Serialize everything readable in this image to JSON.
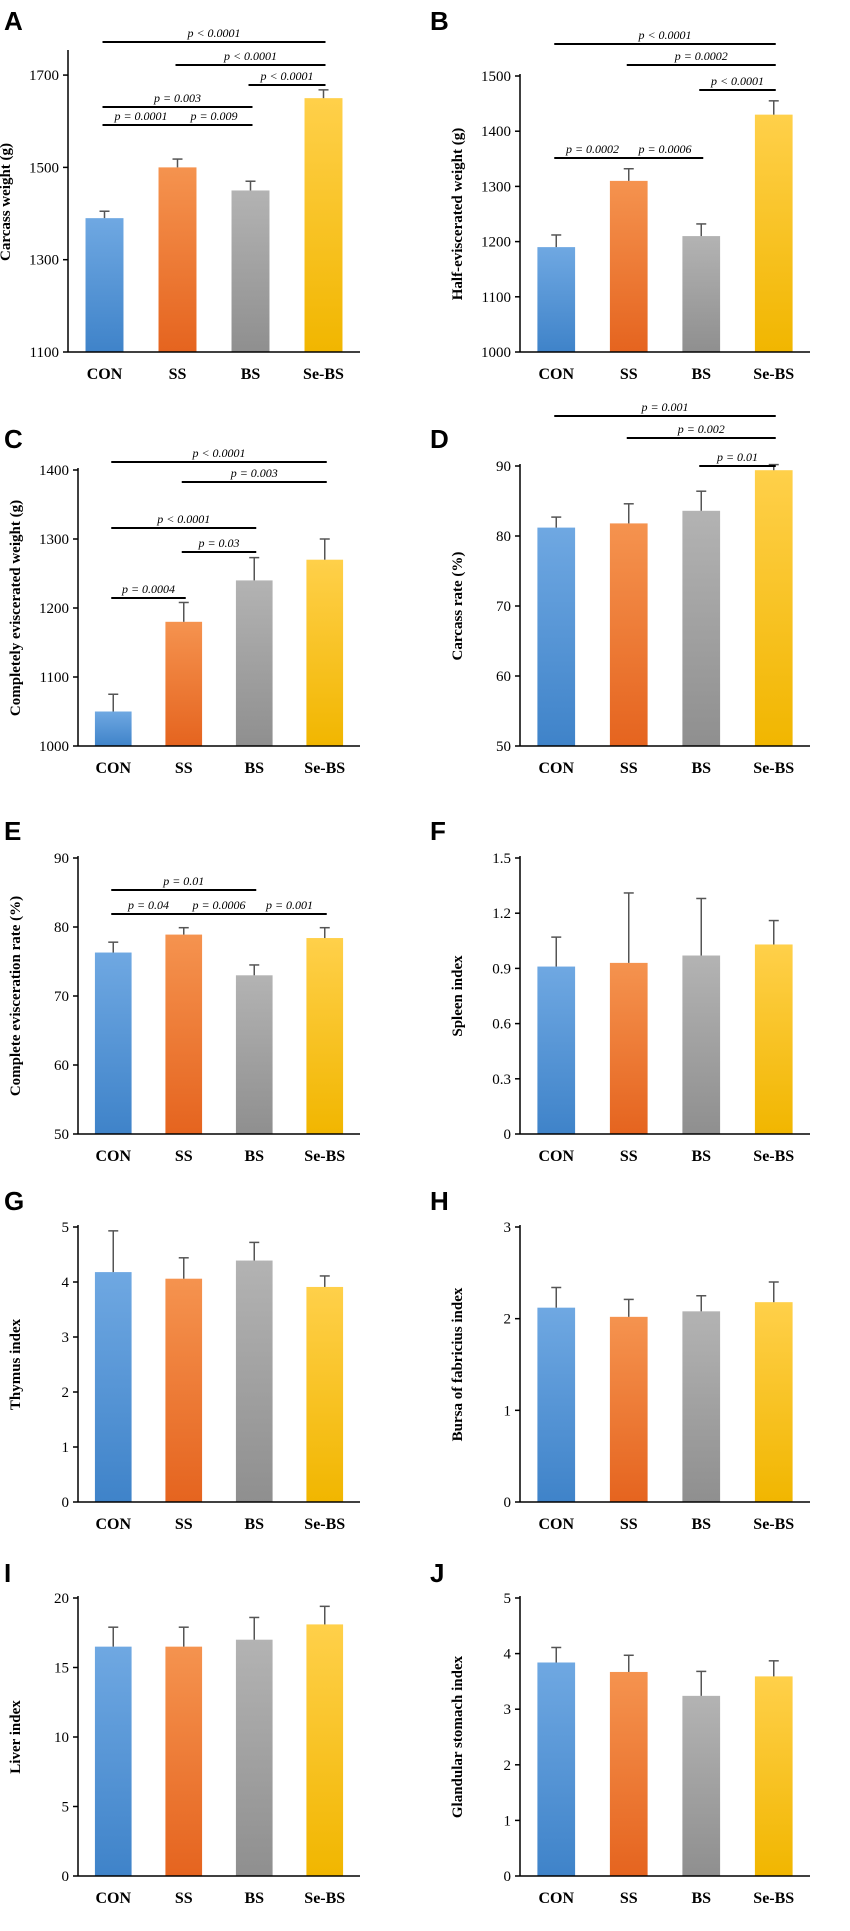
{
  "colors": {
    "CON": [
      "#6fa8e2",
      "#3f83c9"
    ],
    "SS": [
      "#f5934f",
      "#e5641f"
    ],
    "BS": [
      "#b3b3b3",
      "#8f8f8f"
    ],
    "Se-BS": [
      "#ffd04a",
      "#f1b600"
    ]
  },
  "chart_data": [
    {
      "id": "A",
      "type": "bar",
      "ylabel": "Carcass weight (g)",
      "categories": [
        "CON",
        "SS",
        "BS",
        "Se-BS"
      ],
      "values": [
        1390,
        1500,
        1450,
        1650
      ],
      "errors": [
        15,
        18,
        20,
        18
      ],
      "ylim": [
        1100,
        1750
      ],
      "yticks": [
        1100,
        1300,
        1500,
        1700
      ],
      "tick_labels": [
        "1100",
        "1300",
        "1500",
        "1700"
      ],
      "comparisons": [
        {
          "a": 0,
          "b": 3,
          "label": "p < 0.0001",
          "level": 6
        },
        {
          "a": 1,
          "b": 3,
          "label": "p < 0.0001",
          "level": 5
        },
        {
          "a": 2,
          "b": 3,
          "label": "p < 0.0001",
          "level": 4
        },
        {
          "a": 0,
          "b": 2,
          "label": "p = 0.003",
          "level": 3
        },
        {
          "a": 0,
          "b": 1,
          "label": "p = 0.0001",
          "level": 2
        },
        {
          "a": 1,
          "b": 2,
          "label": "p = 0.009",
          "level": 2
        }
      ]
    },
    {
      "id": "B",
      "type": "bar",
      "ylabel": "Half-eviscerated weight (g)",
      "categories": [
        "CON",
        "SS",
        "BS",
        "Se-BS"
      ],
      "values": [
        1190,
        1310,
        1210,
        1430
      ],
      "errors": [
        22,
        22,
        22,
        25
      ],
      "ylim": [
        1000,
        1500
      ],
      "yticks": [
        1000,
        1100,
        1200,
        1300,
        1400,
        1500
      ],
      "tick_labels": [
        "1000",
        "1100",
        "1200",
        "1300",
        "1400",
        "1500"
      ],
      "comparisons": [
        {
          "a": 0,
          "b": 3,
          "label": "p < 0.0001",
          "level": 6
        },
        {
          "a": 1,
          "b": 3,
          "label": "p = 0.0002",
          "level": 5
        },
        {
          "a": 2,
          "b": 3,
          "label": "p < 0.0001",
          "level": 4
        },
        {
          "a": 0,
          "b": 1,
          "label": "p = 0.0002",
          "level": 2
        },
        {
          "a": 1,
          "b": 2,
          "label": "p = 0.0006",
          "level": 2
        }
      ]
    },
    {
      "id": "C",
      "type": "bar",
      "ylabel": "Completely eviscerated weight (g)",
      "categories": [
        "CON",
        "SS",
        "BS",
        "Se-BS"
      ],
      "values": [
        1050,
        1180,
        1240,
        1270
      ],
      "errors": [
        25,
        28,
        33,
        30
      ],
      "ylim": [
        1000,
        1400
      ],
      "yticks": [
        1000,
        1100,
        1200,
        1300,
        1400
      ],
      "tick_labels": [
        "1000",
        "1100",
        "1200",
        "1300",
        "1400"
      ],
      "comparisons": [
        {
          "a": 0,
          "b": 3,
          "label": "p < 0.0001",
          "level": 6
        },
        {
          "a": 1,
          "b": 3,
          "label": "p = 0.003",
          "level": 5
        },
        {
          "a": 0,
          "b": 2,
          "label": "p < 0.0001",
          "level": 4
        },
        {
          "a": 1,
          "b": 2,
          "label": "p = 0.03",
          "level": 3
        },
        {
          "a": 0,
          "b": 1,
          "label": "p = 0.0004",
          "level": 1
        }
      ]
    },
    {
      "id": "D",
      "type": "bar",
      "ylabel": "Carcass rate (%)",
      "categories": [
        "CON",
        "SS",
        "BS",
        "Se-BS"
      ],
      "values": [
        81.2,
        81.8,
        83.6,
        89.4
      ],
      "errors": [
        1.5,
        2.8,
        2.8,
        0.8
      ],
      "ylim": [
        50,
        90
      ],
      "yticks": [
        50,
        60,
        70,
        80,
        90
      ],
      "tick_labels": [
        "50",
        "60",
        "70",
        "80",
        "90"
      ],
      "comparisons": [
        {
          "a": 0,
          "b": 3,
          "label": "p = 0.001",
          "level": 3
        },
        {
          "a": 1,
          "b": 3,
          "label": "p = 0.002",
          "level": 2
        },
        {
          "a": 2,
          "b": 3,
          "label": "p = 0.01",
          "level": 1
        }
      ]
    },
    {
      "id": "E",
      "type": "bar",
      "ylabel": "Complete evisceration rate (%)",
      "categories": [
        "CON",
        "SS",
        "BS",
        "Se-BS"
      ],
      "values": [
        76.3,
        78.9,
        73.0,
        78.4
      ],
      "errors": [
        1.5,
        1.0,
        1.5,
        1.5
      ],
      "ylim": [
        50,
        90
      ],
      "yticks": [
        50,
        60,
        70,
        80,
        90
      ],
      "tick_labels": [
        "50",
        "60",
        "70",
        "80",
        "90"
      ],
      "comparisons": [
        {
          "a": 0,
          "b": 2,
          "label": "p = 0.01",
          "level": 3
        },
        {
          "a": 0,
          "b": 1,
          "label": "p = 0.04",
          "level": 2
        },
        {
          "a": 1,
          "b": 2,
          "label": "p = 0.0006",
          "level": 2
        },
        {
          "a": 2,
          "b": 3,
          "label": "p = 0.001",
          "level": 2
        }
      ]
    },
    {
      "id": "F",
      "type": "bar",
      "ylabel": "Spleen index",
      "categories": [
        "CON",
        "SS",
        "BS",
        "Se-BS"
      ],
      "values": [
        0.91,
        0.93,
        0.97,
        1.03
      ],
      "errors": [
        0.16,
        0.38,
        0.31,
        0.13
      ],
      "ylim": [
        0,
        1.5
      ],
      "yticks": [
        0,
        0.3,
        0.6,
        0.9,
        1.2,
        1.5
      ],
      "tick_labels": [
        "0",
        "0.3",
        "0.6",
        "0.9",
        "1.2",
        "1.5"
      ],
      "comparisons": []
    },
    {
      "id": "G",
      "type": "bar",
      "ylabel": "Thymus index",
      "categories": [
        "CON",
        "SS",
        "BS",
        "Se-BS"
      ],
      "values": [
        4.18,
        4.06,
        4.39,
        3.91
      ],
      "errors": [
        0.75,
        0.38,
        0.33,
        0.2
      ],
      "ylim": [
        0,
        5
      ],
      "yticks": [
        0,
        1,
        2,
        3,
        4,
        5
      ],
      "tick_labels": [
        "0",
        "1",
        "2",
        "3",
        "4",
        "5"
      ],
      "comparisons": []
    },
    {
      "id": "H",
      "type": "bar",
      "ylabel": "Bursa of fabricius index",
      "categories": [
        "CON",
        "SS",
        "BS",
        "Se-BS"
      ],
      "values": [
        2.12,
        2.02,
        2.08,
        2.18
      ],
      "errors": [
        0.22,
        0.19,
        0.17,
        0.22
      ],
      "ylim": [
        0,
        3
      ],
      "yticks": [
        0,
        1,
        2,
        3
      ],
      "tick_labels": [
        "0",
        "1",
        "2",
        "3"
      ],
      "comparisons": []
    },
    {
      "id": "I",
      "type": "bar",
      "ylabel": "Liver index",
      "categories": [
        "CON",
        "SS",
        "BS",
        "Se-BS"
      ],
      "values": [
        16.5,
        16.5,
        17.0,
        18.1
      ],
      "errors": [
        1.4,
        1.4,
        1.6,
        1.3
      ],
      "ylim": [
        0,
        20
      ],
      "yticks": [
        0,
        5,
        10,
        15,
        20
      ],
      "tick_labels": [
        "0",
        "5",
        "10",
        "15",
        "20"
      ],
      "comparisons": []
    },
    {
      "id": "J",
      "type": "bar",
      "ylabel": "Glandular stomach index",
      "categories": [
        "CON",
        "SS",
        "BS",
        "Se-BS"
      ],
      "values": [
        3.84,
        3.67,
        3.24,
        3.59
      ],
      "errors": [
        0.27,
        0.3,
        0.44,
        0.28
      ],
      "ylim": [
        0,
        5
      ],
      "yticks": [
        0,
        1,
        2,
        3,
        4,
        5
      ],
      "tick_labels": [
        "0",
        "1",
        "2",
        "3",
        "4",
        "5"
      ],
      "comparisons": []
    }
  ]
}
